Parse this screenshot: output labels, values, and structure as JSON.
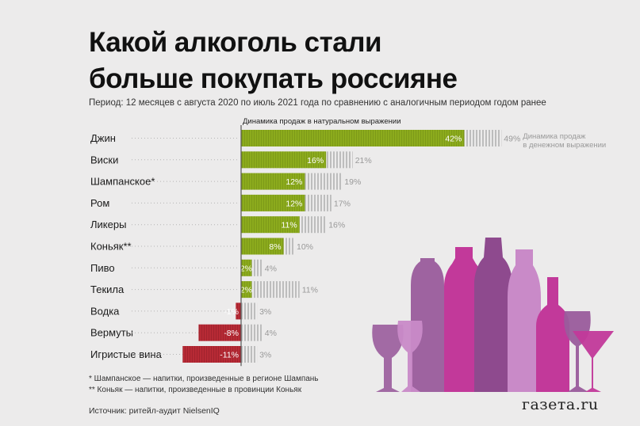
{
  "title_line1": "Какой алкоголь стали",
  "title_line2": "больше покупать россияне",
  "subtitle": "Период: 12 месяцев с августа 2020 по июль 2021 года по сравнению с аналогичным периодом годом ранее",
  "notes": [
    "*  Шампанское — напитки, произведенные в регионе Шампань",
    "** Коньяк — напитки, произведенные в провинции Коньяк"
  ],
  "source": "Источник: ритейл-аудит NielsenIQ",
  "logo": "газета.ru",
  "colors": {
    "positive": "#8cab1d",
    "negative": "#b72a35",
    "money_hatch": "#bdbdbd",
    "bottle_purple": "#9a5c9c",
    "bottle_magenta": "#c2399a",
    "bottle_light": "#c98ac8"
  },
  "chart_data": {
    "type": "bar",
    "orientation": "horizontal",
    "unit": "%",
    "categories": [
      "Джин",
      "Виски",
      "Шампанское*",
      "Ром",
      "Ликеры",
      "Коньяк**",
      "Пиво",
      "Текила",
      "Водка",
      "Вермуты",
      "Игристые вина"
    ],
    "series": [
      {
        "name": "Динамика продаж в натуральном выражении",
        "values": [
          42,
          16,
          12,
          12,
          11,
          8,
          2,
          2,
          -1,
          -8,
          -11
        ]
      },
      {
        "name": "Динамика продаж в денежном выражении",
        "values": [
          49,
          21,
          19,
          17,
          16,
          10,
          4,
          11,
          3,
          4,
          3
        ]
      }
    ],
    "labels_series1": [
      "42%",
      "16%",
      "12%",
      "12%",
      "11%",
      "8%",
      "2%",
      "2%",
      "-1%",
      "-8%",
      "-11%"
    ],
    "labels_series2": [
      "49%",
      "21%",
      "19%",
      "17%",
      "16%",
      "10%",
      "4%",
      "11%",
      "3%",
      "4%",
      "3%"
    ],
    "legend_series2_line1": "Динамика продаж",
    "legend_series2_line2": "в денежном выражении",
    "grid": false,
    "legend": "top"
  }
}
